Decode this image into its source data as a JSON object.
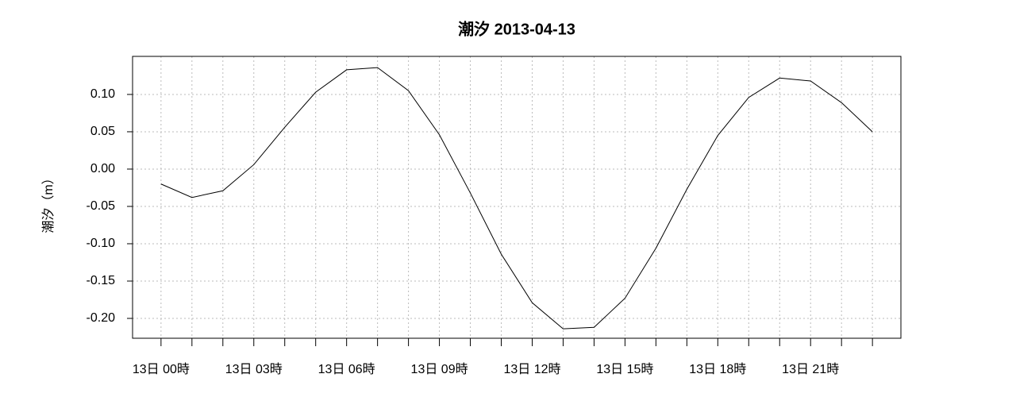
{
  "chart_data": {
    "type": "line",
    "title": "潮汐  2013-04-13",
    "y_label": "潮汐（m）",
    "x": [
      0,
      1,
      2,
      3,
      4,
      5,
      6,
      7,
      8,
      9,
      10,
      11,
      12,
      13,
      14,
      15,
      16,
      17,
      18,
      19,
      20,
      21,
      22,
      23
    ],
    "series": [
      {
        "name": "潮汐",
        "color": "#000000",
        "values": [
          -0.02,
          -0.038,
          -0.029,
          0.006,
          0.056,
          0.103,
          0.133,
          0.136,
          0.105,
          0.046,
          -0.032,
          -0.114,
          -0.179,
          -0.214,
          -0.212,
          -0.173,
          -0.106,
          -0.027,
          0.045,
          0.096,
          0.122,
          0.118,
          0.089,
          0.05
        ]
      }
    ],
    "xlim": [
      -0.92,
      23.92
    ],
    "xticks": [
      {
        "value": 0,
        "label": "13日 00時"
      },
      {
        "value": 3,
        "label": "13日 03時"
      },
      {
        "value": 6,
        "label": "13日 06時"
      },
      {
        "value": 9,
        "label": "13日 09時"
      },
      {
        "value": 12,
        "label": "13日 12時"
      },
      {
        "value": 15,
        "label": "13日 15時"
      },
      {
        "value": 18,
        "label": "13日 18時"
      },
      {
        "value": 21,
        "label": "13日 21時"
      }
    ],
    "xminor_ticks": [
      0,
      1,
      2,
      3,
      4,
      5,
      6,
      7,
      8,
      9,
      10,
      11,
      12,
      13,
      14,
      15,
      16,
      17,
      18,
      19,
      20,
      21,
      22,
      23
    ],
    "ylim": [
      -0.2266,
      0.151
    ],
    "yticks": [
      {
        "value": 0.1,
        "label": "0.10"
      },
      {
        "value": 0.05,
        "label": "0.05"
      },
      {
        "value": 0,
        "label": "0.00"
      },
      {
        "value": -0.05,
        "label": "-0.05"
      },
      {
        "value": -0.1,
        "label": "-0.10"
      },
      {
        "value": -0.15,
        "label": "-0.15"
      },
      {
        "value": -0.2,
        "label": "-0.20"
      }
    ],
    "grid": true
  }
}
